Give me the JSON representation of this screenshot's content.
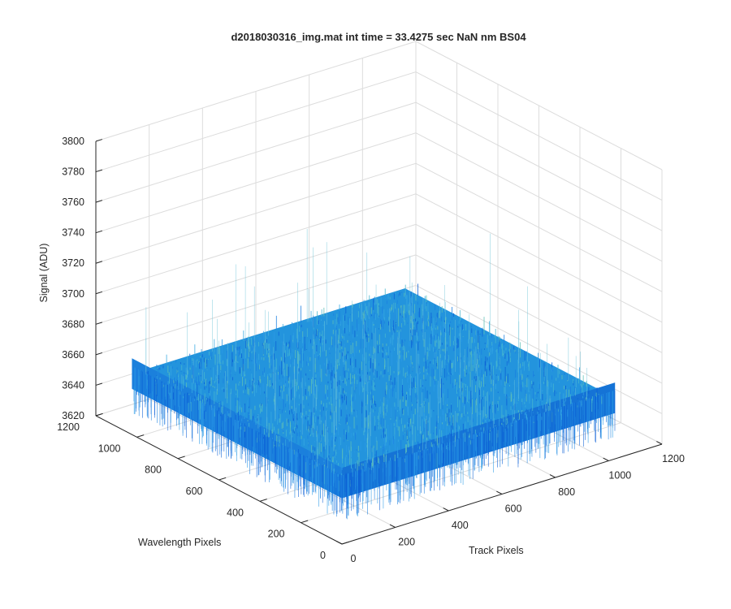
{
  "chart_data": {
    "type": "surface",
    "title": "d2018030316_img.mat int time = 33.4275 sec  NaN nm BS04",
    "xlabel": "Track Pixels",
    "ylabel": "Wavelength Pixels",
    "zlabel": "Signal (ADU)",
    "xlim": [
      0,
      1200
    ],
    "ylim": [
      0,
      1200
    ],
    "zlim": [
      3620,
      3800
    ],
    "xticks": [
      "0",
      "200",
      "400",
      "600",
      "800",
      "1000",
      "1200"
    ],
    "yticks": [
      "0",
      "200",
      "400",
      "600",
      "800",
      "1000",
      "1200"
    ],
    "zticks": [
      "3620",
      "3640",
      "3660",
      "3680",
      "3700",
      "3720",
      "3740",
      "3760",
      "3780",
      "3800"
    ],
    "grid": "on",
    "surface": {
      "x_extent": [
        0,
        1024
      ],
      "y_extent": [
        0,
        1024
      ],
      "mean": 3660,
      "min": 3630,
      "max": 3740,
      "colors": [
        "#0b5fd6",
        "#1a7fe0",
        "#2a9ae6",
        "#37a9e0",
        "#46b6cf",
        "#5fc0b6"
      ]
    }
  }
}
